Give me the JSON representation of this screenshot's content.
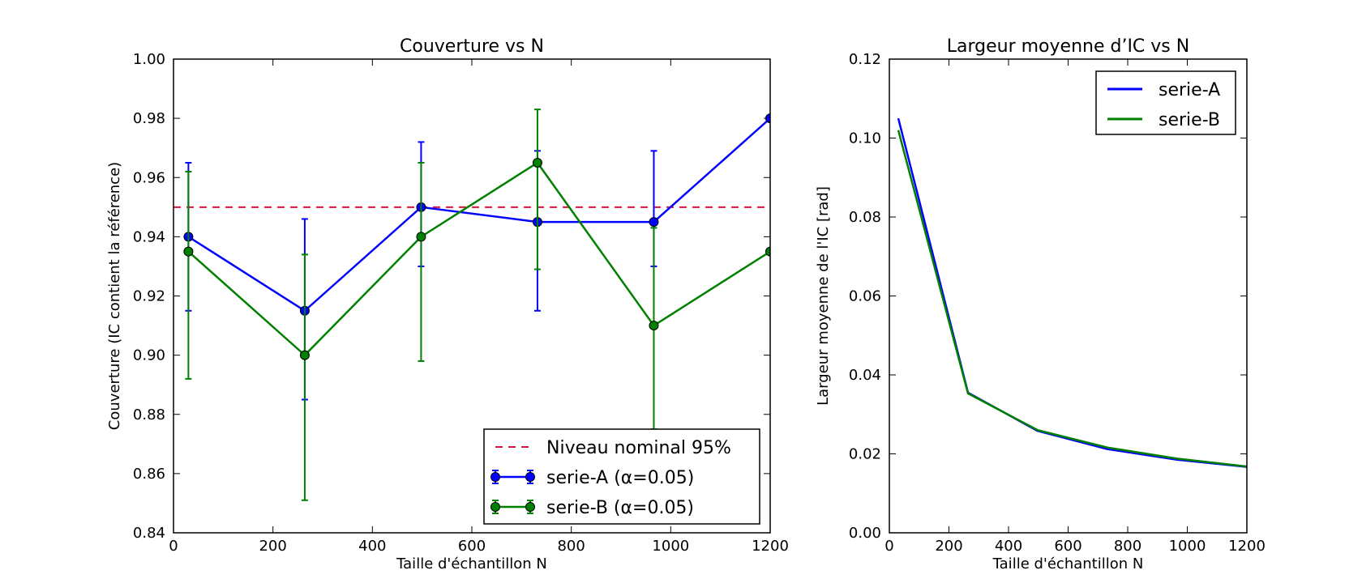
{
  "chart_data": [
    {
      "type": "line",
      "title": "Couverture vs N",
      "xlabel": "Taille d'échantillon N",
      "ylabel": "Couverture (IC contient la référence)",
      "xlim": [
        0,
        1200
      ],
      "ylim": [
        0.84,
        1.0
      ],
      "xticks": [
        0,
        200,
        400,
        600,
        800,
        1000,
        1200
      ],
      "yticks": [
        0.84,
        0.86,
        0.88,
        0.9,
        0.92,
        0.94,
        0.96,
        0.98,
        1.0
      ],
      "ytick_labels": [
        "0.84",
        "0.86",
        "0.88",
        "0.90",
        "0.92",
        "0.94",
        "0.96",
        "0.98",
        "1.00"
      ],
      "grid": false,
      "legend_position": "lower-right",
      "reference_line": {
        "name": "Niveau nominal 95%",
        "y": 0.95,
        "color": "#dc143c",
        "style": "dashed"
      },
      "x": [
        30,
        264,
        498,
        732,
        966,
        1200
      ],
      "series": [
        {
          "name": "serie-A (α=0.05)",
          "color": "#0000ff",
          "values": [
            0.94,
            0.915,
            0.95,
            0.945,
            0.945,
            0.98
          ],
          "err_low": [
            0.025,
            0.03,
            0.02,
            0.03,
            0.015,
            0.0
          ],
          "err_high": [
            0.025,
            0.031,
            0.022,
            0.024,
            0.024,
            0.0
          ]
        },
        {
          "name": "serie-B (α=0.05)",
          "color": "#008000",
          "values": [
            0.935,
            0.9,
            0.94,
            0.965,
            0.91,
            0.935
          ],
          "err_low": [
            0.043,
            0.049,
            0.042,
            0.036,
            0.035,
            0.0
          ],
          "err_high": [
            0.027,
            0.034,
            0.025,
            0.018,
            0.033,
            0.0
          ]
        }
      ]
    },
    {
      "type": "line",
      "title": "Largeur moyenne d’IC vs N",
      "xlabel": "Taille d'échantillon N",
      "ylabel": "Largeur moyenne de l'IC [rad]",
      "xlim": [
        0,
        1200
      ],
      "ylim": [
        0.0,
        0.12
      ],
      "xticks": [
        0,
        200,
        400,
        600,
        800,
        1000,
        1200
      ],
      "yticks": [
        0.0,
        0.02,
        0.04,
        0.06,
        0.08,
        0.1,
        0.12
      ],
      "ytick_labels": [
        "0.00",
        "0.02",
        "0.04",
        "0.06",
        "0.08",
        "0.10",
        "0.12"
      ],
      "grid": false,
      "legend_position": "upper-right",
      "x": [
        30,
        264,
        498,
        732,
        966,
        1200
      ],
      "series": [
        {
          "name": "serie-A",
          "color": "#0000ff",
          "values": [
            0.105,
            0.0355,
            0.0258,
            0.0212,
            0.0185,
            0.0167
          ]
        },
        {
          "name": "serie-B",
          "color": "#008000",
          "values": [
            0.102,
            0.0353,
            0.026,
            0.0216,
            0.0188,
            0.0168
          ]
        }
      ]
    }
  ]
}
